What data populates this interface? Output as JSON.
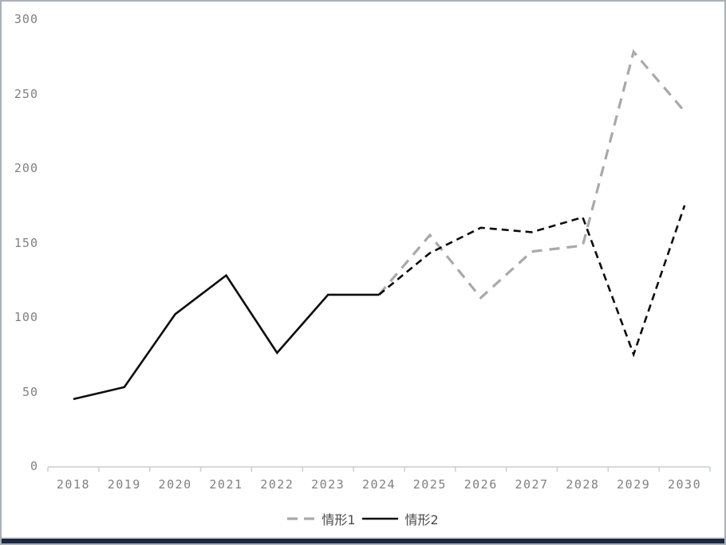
{
  "window": {
    "background": "#ffffff",
    "frame_color": "#aab0b6",
    "bottom_bar_color": "#1c2940"
  },
  "chart_data": {
    "type": "line",
    "title": "",
    "xlabel": "",
    "ylabel": "",
    "categories": [
      "2018",
      "2019",
      "2020",
      "2021",
      "2022",
      "2023",
      "2024",
      "2025",
      "2026",
      "2027",
      "2028",
      "2029",
      "2030"
    ],
    "series": [
      {
        "name": "情形1",
        "color": "#a9a9a9",
        "line_style": "dashed",
        "dash": "13 9",
        "stroke_width": 3.2,
        "values": [
          null,
          null,
          null,
          null,
          null,
          null,
          115,
          155,
          113,
          144,
          148,
          278,
          238
        ]
      },
      {
        "name": "情形2",
        "color": "#0d0d0d",
        "line_style": "solid-then-dashed",
        "solid_until_index": 6,
        "dash": "9 6",
        "stroke_width": 2.6,
        "values": [
          45,
          53,
          102,
          128,
          76,
          115,
          115,
          143,
          160,
          157,
          167,
          75,
          175
        ]
      }
    ],
    "ylim": [
      0,
      300
    ],
    "y_ticks": [
      0,
      50,
      100,
      150,
      200,
      250,
      300
    ],
    "grid": false,
    "legend_position": "bottom",
    "axis_color": "#c9cdd1",
    "tick_label_color": "#808080",
    "legend_text_color": "#4a4a4a"
  }
}
